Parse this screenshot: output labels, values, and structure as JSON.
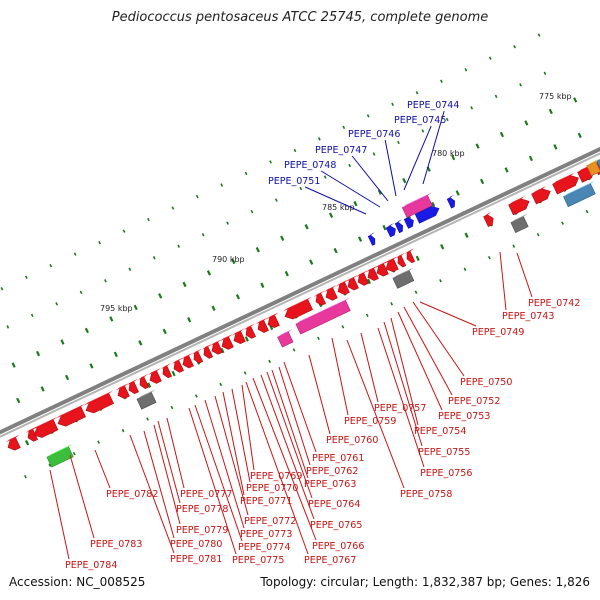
{
  "title": "Pediococcus pentosaceus ATCC 25745, complete genome",
  "footer": {
    "accession": "Accession: NC_008525",
    "summary": "Topology: circular; Length: 1,832,387 bp; Genes: 1,826"
  },
  "colors": {
    "background": "#ffffff",
    "backbone": "#808080",
    "gene_default": "#e8141c",
    "gene_highlight": "#1a1ae6",
    "gene_pink": "#e8389c",
    "gene_gray": "#6e6e6e",
    "gene_green": "#3cbe3c",
    "gene_steel": "#4a86b4",
    "gene_orange": "#e89020",
    "tick_green": "#1a7a1a",
    "label_blue": "#1010a8",
    "label_red": "#c81414"
  },
  "scale_labels": [
    "775 kbp",
    "780 kbp",
    "785 kbp",
    "790 kbp",
    "795 kbp"
  ],
  "highlighted_genes": [
    "PEPE_0744",
    "PEPE_0745",
    "PEPE_0746",
    "PEPE_0747",
    "PEPE_0748",
    "PEPE_0751"
  ],
  "other_genes": [
    "PEPE_0742",
    "PEPE_0743",
    "PEPE_0749",
    "PEPE_0750",
    "PEPE_0752",
    "PEPE_0753",
    "PEPE_0754",
    "PEPE_0755",
    "PEPE_0756",
    "PEPE_0757",
    "PEPE_0758",
    "PEPE_0759",
    "PEPE_0760",
    "PEPE_0761",
    "PEPE_0762",
    "PEPE_0763",
    "PEPE_0764",
    "PEPE_0765",
    "PEPE_0766",
    "PEPE_0767",
    "PEPE_0769",
    "PEPE_0770",
    "PEPE_0771",
    "PEPE_0772",
    "PEPE_0773",
    "PEPE_0774",
    "PEPE_0775",
    "PEPE_0777",
    "PEPE_0778",
    "PEPE_0779",
    "PEPE_0780",
    "PEPE_0781",
    "PEPE_0782",
    "PEPE_0783",
    "PEPE_0784"
  ]
}
